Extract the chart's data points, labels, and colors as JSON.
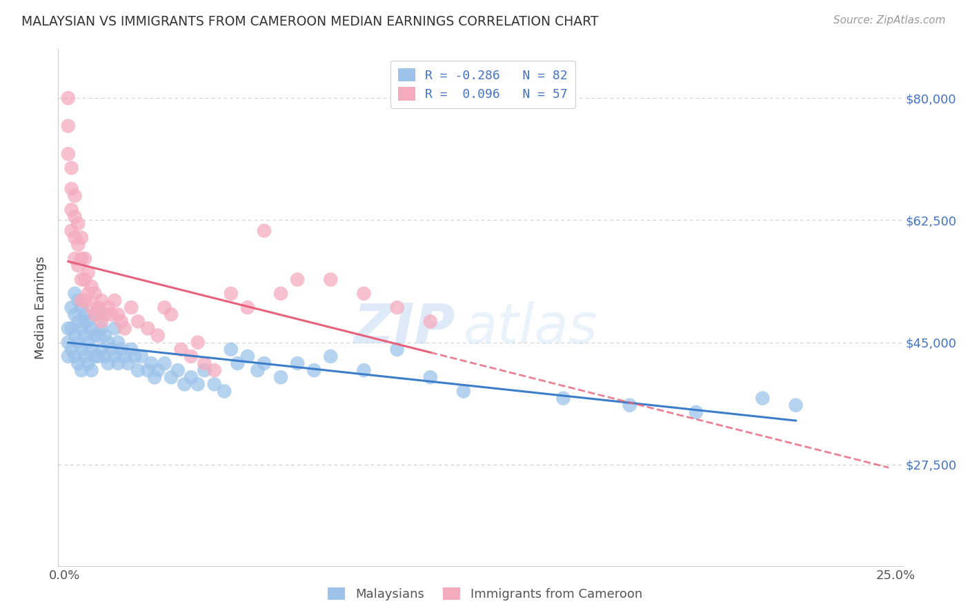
{
  "title": "MALAYSIAN VS IMMIGRANTS FROM CAMEROON MEDIAN EARNINGS CORRELATION CHART",
  "source": "Source: ZipAtlas.com",
  "ylabel": "Median Earnings",
  "xlim": [
    -0.002,
    0.252
  ],
  "ylim": [
    13000,
    87000
  ],
  "yticks": [
    27500,
    45000,
    62500,
    80000
  ],
  "ytick_labels": [
    "$27,500",
    "$45,000",
    "$62,500",
    "$80,000"
  ],
  "xticks": [
    0.0,
    0.05,
    0.1,
    0.15,
    0.2,
    0.25
  ],
  "xtick_labels": [
    "0.0%",
    "",
    "",
    "",
    "",
    "25.0%"
  ],
  "grid_color": "#cccccc",
  "background_color": "#ffffff",
  "blue_color": "#9dc3ea",
  "pink_color": "#f4abbe",
  "blue_line_color": "#3b7dc8",
  "pink_line_color": "#e8607a",
  "watermark": "ZIPatlas",
  "malaysians_x": [
    0.001,
    0.001,
    0.001,
    0.002,
    0.002,
    0.002,
    0.003,
    0.003,
    0.003,
    0.003,
    0.004,
    0.004,
    0.004,
    0.004,
    0.005,
    0.005,
    0.005,
    0.005,
    0.006,
    0.006,
    0.006,
    0.006,
    0.007,
    0.007,
    0.007,
    0.008,
    0.008,
    0.008,
    0.009,
    0.009,
    0.01,
    0.01,
    0.01,
    0.011,
    0.011,
    0.012,
    0.012,
    0.013,
    0.013,
    0.014,
    0.015,
    0.015,
    0.016,
    0.016,
    0.017,
    0.018,
    0.019,
    0.02,
    0.021,
    0.022,
    0.023,
    0.025,
    0.026,
    0.027,
    0.028,
    0.03,
    0.032,
    0.034,
    0.036,
    0.038,
    0.04,
    0.042,
    0.045,
    0.048,
    0.05,
    0.052,
    0.055,
    0.058,
    0.06,
    0.065,
    0.07,
    0.075,
    0.08,
    0.09,
    0.1,
    0.11,
    0.12,
    0.15,
    0.17,
    0.19,
    0.21,
    0.22
  ],
  "malaysians_y": [
    47000,
    45000,
    43000,
    50000,
    47000,
    44000,
    52000,
    49000,
    46000,
    43000,
    51000,
    48000,
    45000,
    42000,
    50000,
    47000,
    44000,
    41000,
    49000,
    46000,
    48000,
    43000,
    48000,
    45000,
    42000,
    47000,
    44000,
    41000,
    46000,
    43000,
    49000,
    46000,
    43000,
    47000,
    44000,
    46000,
    43000,
    45000,
    42000,
    44000,
    47000,
    43000,
    45000,
    42000,
    44000,
    43000,
    42000,
    44000,
    43000,
    41000,
    43000,
    41000,
    42000,
    40000,
    41000,
    42000,
    40000,
    41000,
    39000,
    40000,
    39000,
    41000,
    39000,
    38000,
    44000,
    42000,
    43000,
    41000,
    42000,
    40000,
    42000,
    41000,
    43000,
    41000,
    44000,
    40000,
    38000,
    37000,
    36000,
    35000,
    37000,
    36000
  ],
  "cameroon_x": [
    0.001,
    0.001,
    0.001,
    0.002,
    0.002,
    0.002,
    0.002,
    0.003,
    0.003,
    0.003,
    0.003,
    0.004,
    0.004,
    0.004,
    0.005,
    0.005,
    0.005,
    0.005,
    0.006,
    0.006,
    0.006,
    0.007,
    0.007,
    0.008,
    0.008,
    0.009,
    0.009,
    0.01,
    0.011,
    0.011,
    0.012,
    0.013,
    0.014,
    0.015,
    0.016,
    0.017,
    0.018,
    0.02,
    0.022,
    0.025,
    0.028,
    0.03,
    0.032,
    0.035,
    0.038,
    0.04,
    0.042,
    0.045,
    0.05,
    0.055,
    0.06,
    0.065,
    0.07,
    0.08,
    0.09,
    0.1,
    0.11
  ],
  "cameroon_y": [
    80000,
    76000,
    72000,
    70000,
    67000,
    64000,
    61000,
    66000,
    63000,
    60000,
    57000,
    62000,
    59000,
    56000,
    60000,
    57000,
    54000,
    51000,
    57000,
    54000,
    51000,
    55000,
    52000,
    53000,
    50000,
    52000,
    49000,
    50000,
    51000,
    48000,
    49000,
    50000,
    49000,
    51000,
    49000,
    48000,
    47000,
    50000,
    48000,
    47000,
    46000,
    50000,
    49000,
    44000,
    43000,
    45000,
    42000,
    41000,
    52000,
    50000,
    61000,
    52000,
    54000,
    54000,
    52000,
    50000,
    48000
  ]
}
